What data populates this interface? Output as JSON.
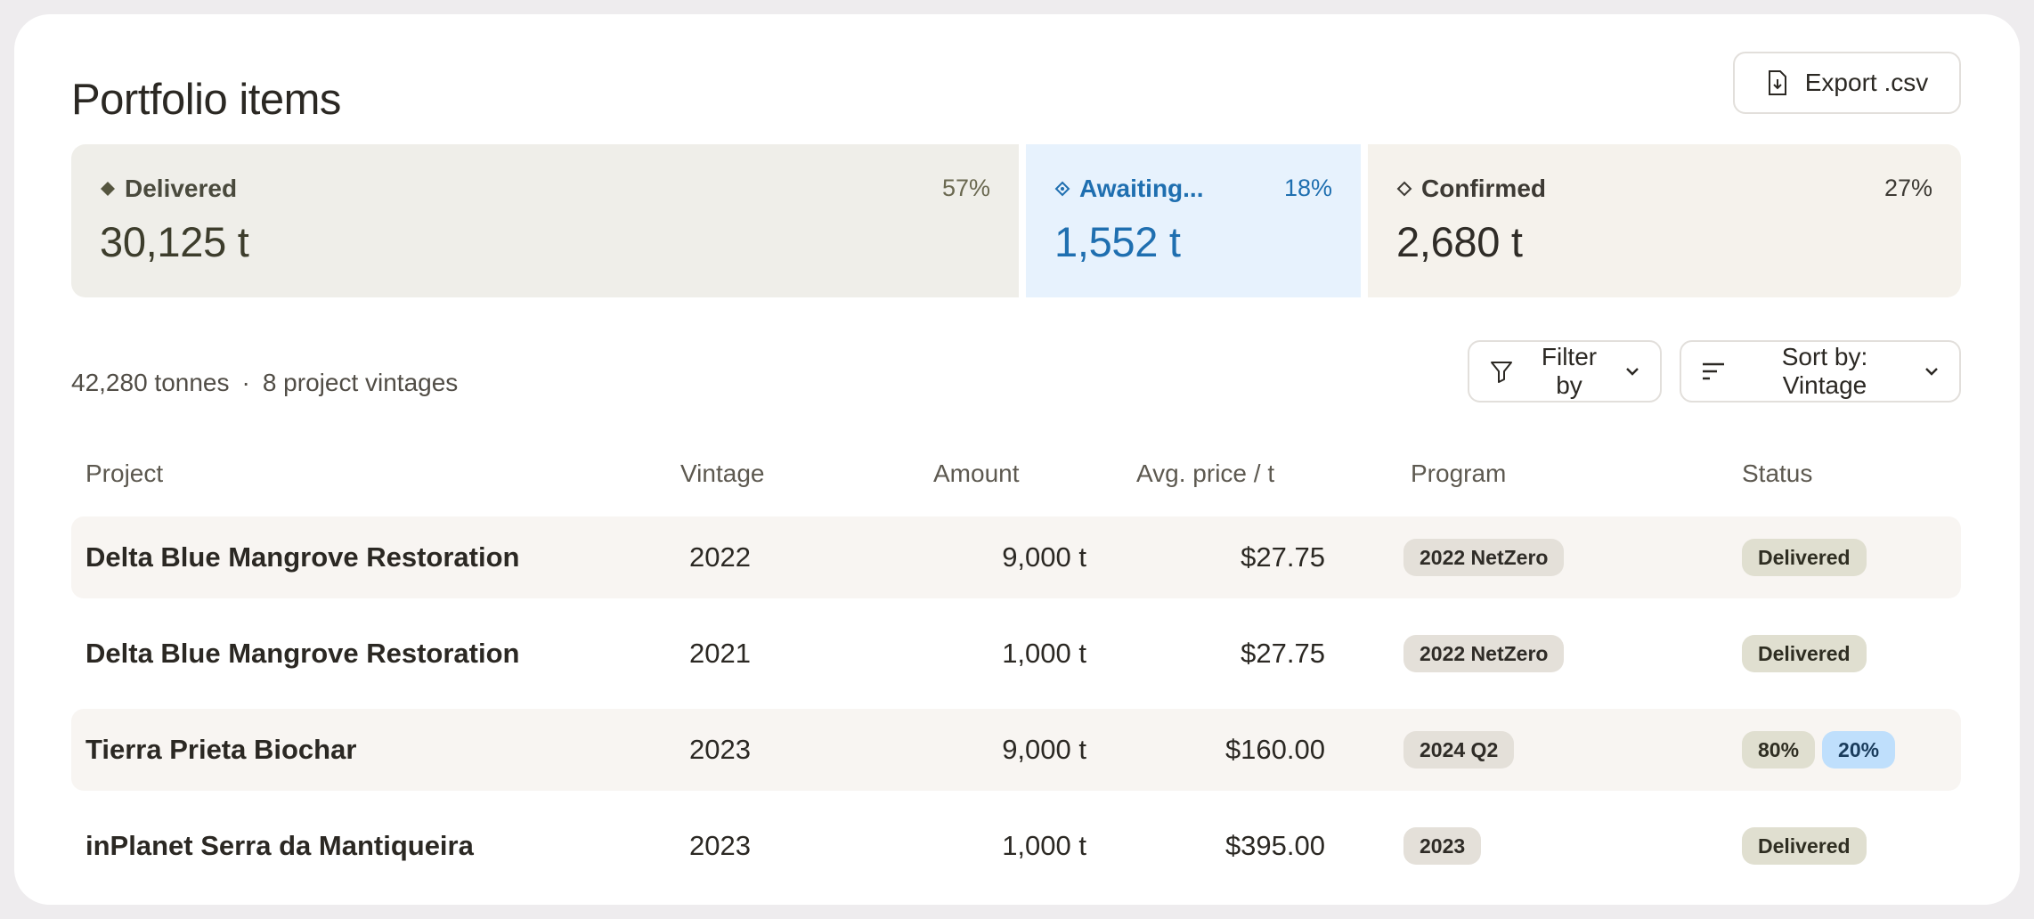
{
  "header": {
    "title": "Portfolio items",
    "export_label": "Export .csv"
  },
  "summary": {
    "delivered": {
      "label": "Delivered",
      "percent": "57%",
      "value": "30,125 t",
      "color": "#efeee9"
    },
    "awaiting": {
      "label": "Awaiting...",
      "percent": "18%",
      "value": "1,552 t",
      "color": "#e7f2fd"
    },
    "confirmed": {
      "label": "Confirmed",
      "percent": "27%",
      "value": "2,680 t",
      "color": "#f5f2ec"
    }
  },
  "meta": {
    "tonnes": "42,280 tonnes",
    "separator": "·",
    "vintages": "8 project vintages"
  },
  "controls": {
    "filter_label": "Filter by",
    "sort_label": "Sort by: Vintage"
  },
  "table": {
    "columns": [
      "Project",
      "Vintage",
      "Amount",
      "Avg. price / t",
      "Program",
      "Status"
    ],
    "rows": [
      {
        "project": "Delta Blue Mangrove Restoration",
        "vintage": "2022",
        "amount": "9,000 t",
        "price": "$27.75",
        "program": "2022 NetZero",
        "status": [
          "Delivered"
        ]
      },
      {
        "project": "Delta Blue Mangrove Restoration",
        "vintage": "2021",
        "amount": "1,000 t",
        "price": "$27.75",
        "program": "2022 NetZero",
        "status": [
          "Delivered"
        ]
      },
      {
        "project": "Tierra Prieta Biochar",
        "vintage": "2023",
        "amount": "9,000 t",
        "price": "$160.00",
        "program": "2024 Q2",
        "status": [
          "80%",
          "20%"
        ]
      },
      {
        "project": "inPlanet Serra da Mantiqueira",
        "vintage": "2023",
        "amount": "1,000 t",
        "price": "$395.00",
        "program": "2023",
        "status": [
          "Delivered"
        ]
      }
    ]
  }
}
